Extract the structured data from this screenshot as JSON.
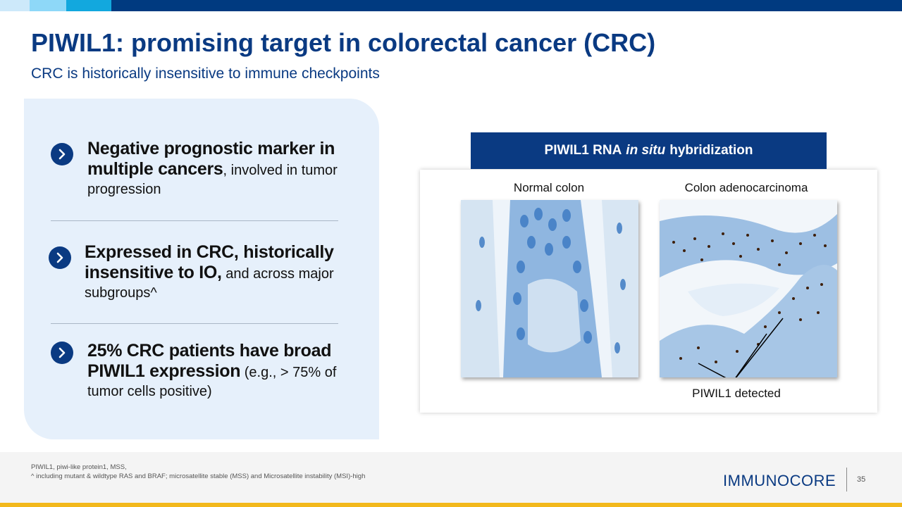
{
  "header": {
    "title": "PIWIL1: promising target in colorectal cancer (CRC)",
    "subtitle": "CRC is historically insensitive to immune checkpoints"
  },
  "bullets": [
    {
      "bold": "Negative prognostic marker in multiple cancers",
      "rest": ", involved in tumor progression"
    },
    {
      "bold": "Expressed in CRC, historically insensitive to IO,",
      "rest": " and across major subgroups^"
    },
    {
      "bold": "25% CRC patients have broad PIWIL1 expression",
      "rest": " (e.g., > 75% of tumor cells positive)"
    }
  ],
  "figure": {
    "header_pre": "PIWIL1 RNA",
    "header_italic": "in situ",
    "header_post": "hybridization",
    "left_label": "Normal colon",
    "right_label": "Colon adenocarcinoma",
    "annotation": "PIWIL1 detected"
  },
  "footer": {
    "note1": "PIWIL1,  piwi-like protein1, MSS,",
    "note2": "^  including mutant & wildtype RAS and BRAF; microsatellite stable (MSS) and  Microsatellite instability (MSI)-high",
    "logo": "IMMUNOCORE",
    "page": "35"
  },
  "colors": {
    "navy": "#0A3A82",
    "panel_bg": "#E6F0FB",
    "accent_gold": "#F2B81C"
  }
}
